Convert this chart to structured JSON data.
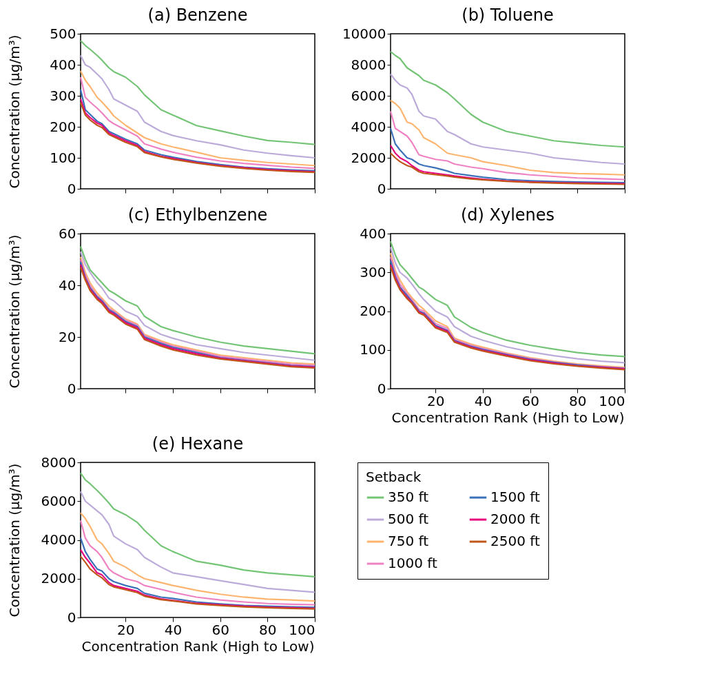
{
  "chart_data": [
    {
      "type": "line",
      "title": "(a) Benzene",
      "ylabel": "Concentration (μg/m³)",
      "x": [
        1,
        3,
        5,
        8,
        10,
        13,
        15,
        20,
        25,
        28,
        35,
        40,
        50,
        60,
        70,
        80,
        90,
        100
      ],
      "xlim": [
        1,
        100
      ],
      "xticks": [
        20,
        40,
        60,
        80,
        100
      ],
      "ylim": [
        0,
        500
      ],
      "yticks": [
        0,
        100,
        200,
        300,
        400,
        500
      ],
      "tick_labels": "y",
      "grid": false,
      "legend": false,
      "line_style": "solid",
      "marker": "none",
      "series": [
        {
          "color": "#74c476",
          "values": [
            478,
            462,
            450,
            430,
            415,
            390,
            378,
            360,
            330,
            303,
            255,
            238,
            204,
            187,
            170,
            156,
            150,
            143
          ]
        },
        {
          "color": "#bcaad9",
          "values": [
            430,
            400,
            392,
            370,
            355,
            320,
            290,
            270,
            250,
            215,
            185,
            172,
            155,
            142,
            125,
            115,
            107,
            100
          ]
        },
        {
          "color": "#fdb46e",
          "values": [
            380,
            350,
            330,
            295,
            280,
            255,
            235,
            205,
            180,
            165,
            145,
            135,
            118,
            100,
            92,
            85,
            80,
            75
          ]
        },
        {
          "color": "#ee82c3",
          "values": [
            360,
            295,
            280,
            260,
            245,
            220,
            210,
            190,
            170,
            145,
            128,
            118,
            102,
            90,
            82,
            76,
            70,
            66
          ]
        },
        {
          "color": "#3a70b8",
          "values": [
            320,
            255,
            240,
            218,
            210,
            185,
            178,
            160,
            145,
            125,
            110,
            102,
            88,
            78,
            70,
            65,
            61,
            58
          ]
        },
        {
          "color": "#e6007e",
          "values": [
            290,
            245,
            230,
            212,
            205,
            180,
            172,
            155,
            140,
            120,
            105,
            98,
            85,
            75,
            68,
            62,
            58,
            55
          ]
        },
        {
          "color": "#c0561a",
          "values": [
            278,
            238,
            222,
            205,
            198,
            175,
            168,
            150,
            136,
            117,
            103,
            95,
            83,
            73,
            66,
            60,
            56,
            53
          ]
        }
      ]
    },
    {
      "type": "line",
      "title": "(b) Toluene",
      "x": [
        1,
        3,
        5,
        8,
        10,
        13,
        15,
        20,
        25,
        28,
        35,
        40,
        50,
        60,
        70,
        80,
        90,
        100
      ],
      "xlim": [
        1,
        100
      ],
      "xticks": [
        20,
        40,
        60,
        80,
        100
      ],
      "ylim": [
        0,
        10000
      ],
      "yticks": [
        0,
        2000,
        4000,
        6000,
        8000,
        10000
      ],
      "tick_labels": "y",
      "grid": false,
      "legend": false,
      "line_style": "solid",
      "marker": "none",
      "series": [
        {
          "color": "#74c476",
          "values": [
            8850,
            8600,
            8400,
            7800,
            7600,
            7300,
            7000,
            6700,
            6200,
            5800,
            4800,
            4300,
            3700,
            3400,
            3100,
            2950,
            2800,
            2700
          ]
        },
        {
          "color": "#bcaad9",
          "values": [
            7400,
            7000,
            6700,
            6500,
            6100,
            5000,
            4700,
            4500,
            3700,
            3500,
            2900,
            2700,
            2500,
            2300,
            2000,
            1850,
            1700,
            1600
          ]
        },
        {
          "color": "#fdb46e",
          "values": [
            5700,
            5500,
            5200,
            4300,
            4200,
            3800,
            3300,
            2900,
            2300,
            2200,
            2000,
            1750,
            1500,
            1200,
            1050,
            980,
            950,
            900
          ]
        },
        {
          "color": "#ee82c3",
          "values": [
            5000,
            3900,
            3700,
            3400,
            3000,
            2200,
            2100,
            1900,
            1800,
            1600,
            1400,
            1300,
            1050,
            900,
            800,
            700,
            650,
            600
          ]
        },
        {
          "color": "#3a70b8",
          "values": [
            3900,
            2900,
            2500,
            2000,
            1900,
            1600,
            1500,
            1350,
            1150,
            1000,
            850,
            750,
            600,
            520,
            470,
            440,
            420,
            400
          ]
        },
        {
          "color": "#e6007e",
          "values": [
            2800,
            2300,
            2000,
            1750,
            1500,
            1200,
            1100,
            1000,
            900,
            830,
            700,
            620,
            510,
            440,
            400,
            370,
            350,
            330
          ]
        },
        {
          "color": "#c0561a",
          "values": [
            2300,
            2000,
            1750,
            1500,
            1400,
            1100,
            1000,
            920,
            830,
            760,
            640,
            580,
            480,
            420,
            370,
            340,
            310,
            290
          ]
        }
      ]
    },
    {
      "type": "line",
      "title": "(c) Ethylbenzene",
      "ylabel": "Concentration (μg/m³)",
      "x": [
        1,
        3,
        5,
        8,
        10,
        13,
        15,
        20,
        25,
        28,
        35,
        40,
        50,
        60,
        70,
        80,
        90,
        100
      ],
      "xlim": [
        1,
        100
      ],
      "xticks": [
        20,
        40,
        60,
        80,
        100
      ],
      "ylim": [
        0,
        60
      ],
      "yticks": [
        0,
        20,
        40,
        60
      ],
      "tick_labels": "y",
      "grid": false,
      "legend": false,
      "line_style": "solid",
      "marker": "none",
      "series": [
        {
          "color": "#74c476",
          "values": [
            55,
            50,
            46,
            43,
            41,
            38,
            37,
            34,
            32,
            28,
            24,
            22.5,
            20,
            18,
            16.5,
            15.5,
            14.5,
            13.5
          ]
        },
        {
          "color": "#bcaad9",
          "values": [
            53,
            48,
            45,
            41,
            39,
            35,
            34,
            30,
            28,
            24.5,
            21,
            19.5,
            17,
            15.5,
            14,
            13,
            12,
            11
          ]
        },
        {
          "color": "#fdb46e",
          "values": [
            51,
            45,
            41,
            37,
            35,
            32,
            30.5,
            27,
            25,
            21,
            18.5,
            17,
            15,
            13,
            12,
            11,
            10,
            9.5
          ]
        },
        {
          "color": "#ee82c3",
          "values": [
            50,
            44,
            40,
            36,
            34.5,
            31,
            30,
            26.5,
            24.5,
            20.5,
            18,
            16.5,
            14.5,
            12.5,
            11.5,
            10.5,
            9.5,
            9
          ]
        },
        {
          "color": "#3a70b8",
          "values": [
            49,
            43,
            39,
            35.5,
            34,
            30.5,
            29.5,
            26,
            24,
            20,
            17.5,
            16,
            14,
            12,
            11,
            10,
            9,
            8.5
          ]
        },
        {
          "color": "#e6007e",
          "values": [
            48,
            42.5,
            38.5,
            35,
            33.5,
            30,
            29,
            25.5,
            23.5,
            19.5,
            17,
            15.5,
            13.5,
            11.8,
            10.8,
            9.8,
            8.8,
            8.3
          ]
        },
        {
          "color": "#c0561a",
          "values": [
            47,
            42,
            38,
            34.5,
            33,
            29.5,
            28.5,
            25,
            23,
            19,
            16.5,
            15,
            13,
            11.5,
            10.5,
            9.5,
            8.5,
            8
          ]
        }
      ]
    },
    {
      "type": "line",
      "title": "(d) Xylenes",
      "xlabel": "Concentration Rank (High to Low)",
      "x": [
        1,
        3,
        5,
        8,
        10,
        13,
        15,
        20,
        25,
        28,
        35,
        40,
        50,
        60,
        70,
        80,
        90,
        100
      ],
      "xlim": [
        1,
        100
      ],
      "xticks": [
        20,
        40,
        60,
        80,
        100
      ],
      "ylim": [
        0,
        400
      ],
      "yticks": [
        0,
        100,
        200,
        300,
        400
      ],
      "grid": false,
      "legend": false,
      "line_style": "solid",
      "marker": "none",
      "series": [
        {
          "color": "#74c476",
          "values": [
            380,
            345,
            320,
            300,
            285,
            262,
            255,
            230,
            215,
            185,
            158,
            145,
            125,
            112,
            102,
            93,
            87,
            83
          ]
        },
        {
          "color": "#bcaad9",
          "values": [
            365,
            325,
            300,
            285,
            270,
            245,
            230,
            200,
            185,
            160,
            135,
            125,
            108,
            95,
            85,
            77,
            71,
            67
          ]
        },
        {
          "color": "#fdb46e",
          "values": [
            350,
            305,
            280,
            250,
            235,
            215,
            205,
            175,
            160,
            130,
            115,
            107,
            92,
            80,
            71,
            64,
            59,
            55
          ]
        },
        {
          "color": "#ee82c3",
          "values": [
            340,
            300,
            270,
            245,
            230,
            205,
            200,
            168,
            155,
            127,
            112,
            104,
            90,
            78,
            69,
            62,
            57,
            53
          ]
        },
        {
          "color": "#3a70b8",
          "values": [
            330,
            290,
            262,
            240,
            225,
            200,
            195,
            163,
            150,
            124,
            109,
            101,
            88,
            76,
            68,
            61,
            56,
            52
          ]
        },
        {
          "color": "#e6007e",
          "values": [
            320,
            285,
            258,
            235,
            222,
            198,
            192,
            160,
            148,
            122,
            107,
            99,
            86,
            74,
            66,
            59,
            55,
            51
          ]
        },
        {
          "color": "#c0561a",
          "values": [
            315,
            280,
            255,
            232,
            220,
            195,
            190,
            157,
            145,
            120,
            105,
            97,
            84,
            72,
            64,
            58,
            53,
            49
          ]
        }
      ]
    },
    {
      "type": "line",
      "title": "(e) Hexane",
      "xlabel": "Concentration Rank (High to Low)",
      "ylabel": "Concentration (μg/m³)",
      "legend_title": "Setback",
      "x": [
        1,
        3,
        5,
        8,
        10,
        13,
        15,
        20,
        25,
        28,
        35,
        40,
        50,
        60,
        70,
        80,
        90,
        100
      ],
      "xlim": [
        1,
        100
      ],
      "xticks": [
        20,
        40,
        60,
        80,
        100
      ],
      "ylim": [
        0,
        8000
      ],
      "yticks": [
        0,
        2000,
        4000,
        6000,
        8000
      ],
      "grid": false,
      "legend": "right",
      "line_style": "solid",
      "marker": "none",
      "series": [
        {
          "name": "350 ft",
          "color": "#74c476",
          "values": [
            7450,
            7100,
            6900,
            6550,
            6300,
            5900,
            5600,
            5300,
            4900,
            4500,
            3700,
            3400,
            2900,
            2700,
            2450,
            2300,
            2200,
            2100
          ]
        },
        {
          "name": "500 ft",
          "color": "#bcaad9",
          "values": [
            6500,
            6000,
            5800,
            5500,
            5300,
            4800,
            4200,
            3800,
            3500,
            3100,
            2600,
            2300,
            2100,
            1900,
            1700,
            1500,
            1400,
            1300
          ]
        },
        {
          "name": "750 ft",
          "color": "#fdb46e",
          "values": [
            5400,
            5100,
            4700,
            4000,
            3800,
            3300,
            2900,
            2600,
            2200,
            2000,
            1800,
            1650,
            1400,
            1200,
            1050,
            950,
            900,
            850
          ]
        },
        {
          "name": "1000 ft",
          "color": "#ee82c3",
          "values": [
            5000,
            4100,
            3700,
            3400,
            3100,
            2500,
            2300,
            2000,
            1850,
            1650,
            1450,
            1300,
            1050,
            900,
            800,
            720,
            680,
            650
          ]
        },
        {
          "name": "1500 ft",
          "color": "#3a70b8",
          "values": [
            4100,
            3400,
            3000,
            2500,
            2400,
            2000,
            1850,
            1650,
            1500,
            1250,
            1050,
            980,
            800,
            700,
            620,
            580,
            550,
            520
          ]
        },
        {
          "name": "2000 ft",
          "color": "#e6007e",
          "values": [
            3500,
            3100,
            2800,
            2300,
            2200,
            1800,
            1650,
            1500,
            1350,
            1150,
            960,
            880,
            730,
            650,
            580,
            530,
            500,
            470
          ]
        },
        {
          "name": "2500 ft",
          "color": "#c0561a",
          "values": [
            3150,
            2850,
            2500,
            2200,
            2050,
            1700,
            1580,
            1430,
            1280,
            1100,
            920,
            850,
            700,
            620,
            550,
            500,
            470,
            440
          ]
        }
      ]
    }
  ]
}
